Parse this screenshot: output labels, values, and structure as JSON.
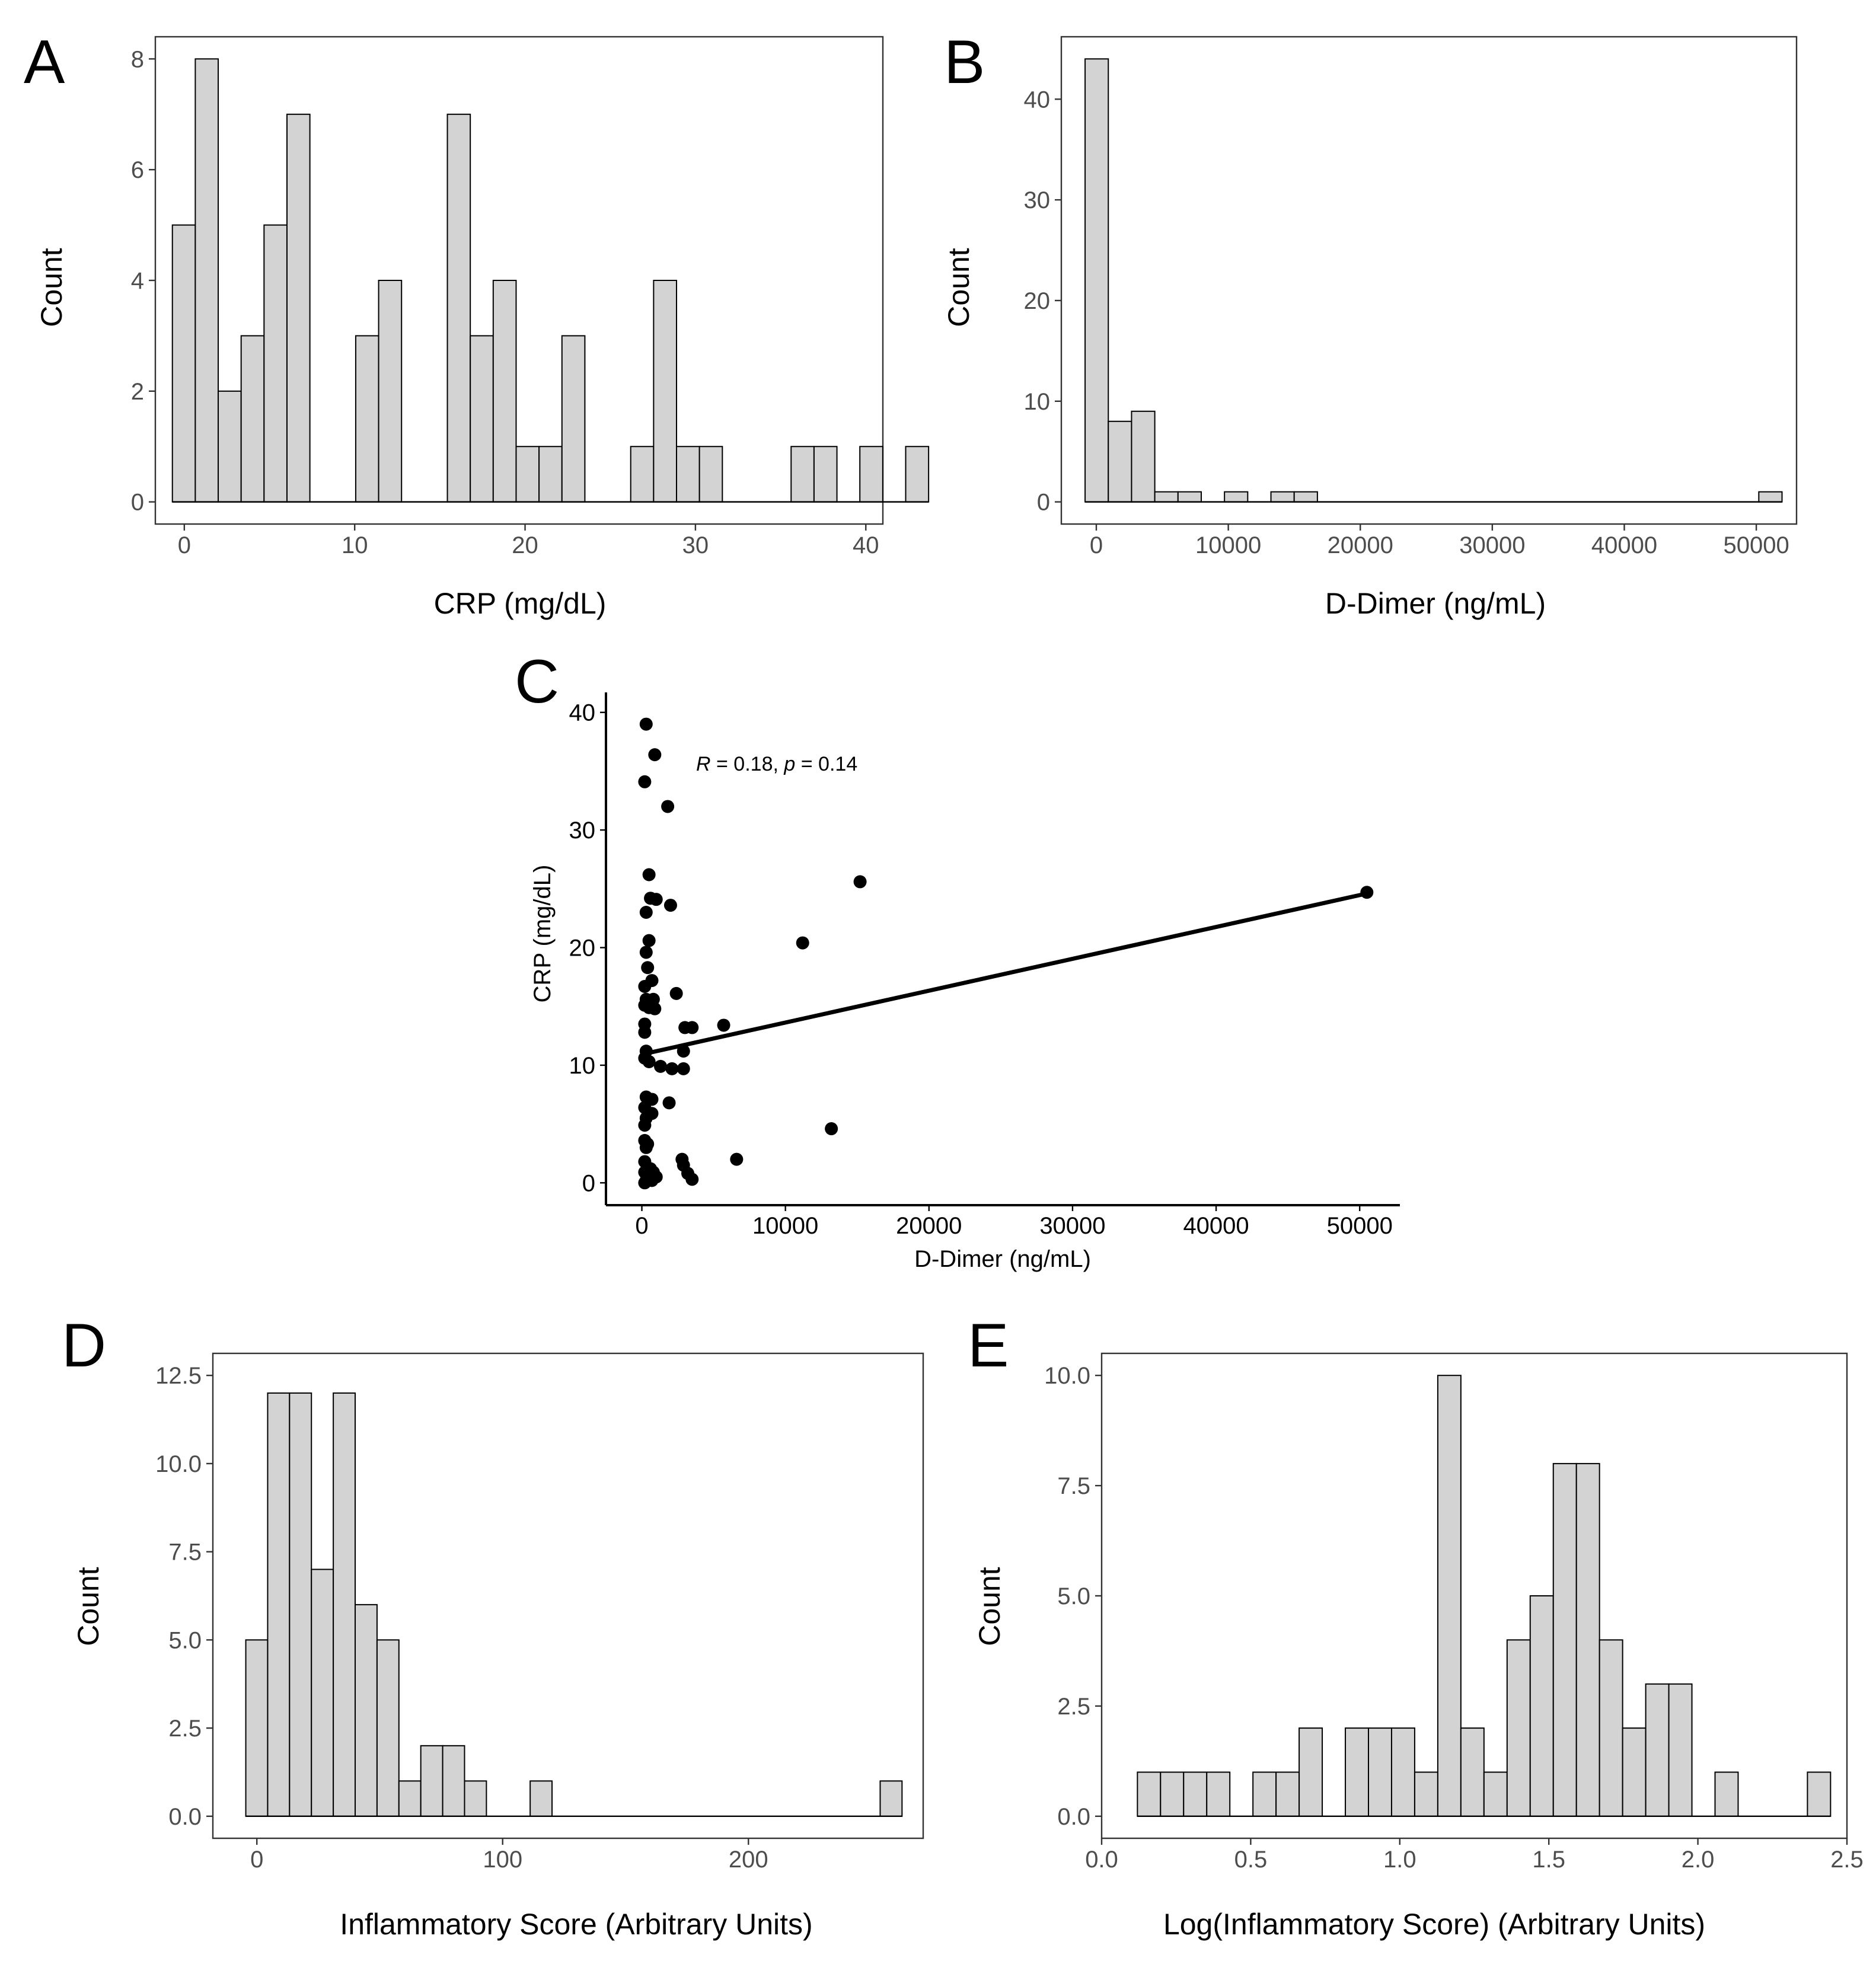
{
  "chart_data": [
    {
      "panel": "A",
      "type": "histogram",
      "xlabel": "CRP (mg/dL)",
      "ylabel": "Count",
      "xlim": [
        -1.7,
        41
      ],
      "ylim": [
        -0.4,
        8.4
      ],
      "xticks": [
        0,
        10,
        20,
        30,
        40
      ],
      "yticks": [
        0,
        2,
        4,
        6,
        8
      ],
      "bin_start": -0.7,
      "bin_width": 1.345,
      "counts": [
        5,
        8,
        2,
        3,
        5,
        7,
        0,
        0,
        3,
        4,
        0,
        0,
        7,
        3,
        4,
        1,
        1,
        3,
        0,
        0,
        1,
        4,
        1,
        1,
        0,
        0,
        0,
        1,
        1,
        0,
        1,
        0,
        1
      ]
    },
    {
      "panel": "B",
      "type": "histogram",
      "xlabel": "D-Dimer (ng/mL)",
      "ylabel": "Count",
      "xlim": [
        -2650,
        53050
      ],
      "ylim": [
        -2.2,
        46.2
      ],
      "xticks": [
        0,
        10000,
        20000,
        30000,
        40000,
        50000
      ],
      "yticks": [
        0,
        10,
        20,
        30,
        40
      ],
      "bin_start": -850,
      "bin_width": 1760,
      "counts": [
        44,
        8,
        9,
        1,
        1,
        0,
        1,
        0,
        1,
        1,
        0,
        0,
        0,
        0,
        0,
        0,
        0,
        0,
        0,
        0,
        0,
        0,
        0,
        0,
        0,
        0,
        0,
        0,
        0,
        1
      ]
    },
    {
      "panel": "C",
      "type": "scatter",
      "xlabel": "D-Dimer (ng/mL)",
      "ylabel": "CRP (mg/dL)",
      "xlim": [
        -2500,
        52800
      ],
      "ylim": [
        -1.9,
        41.7
      ],
      "xticks": [
        0,
        10000,
        20000,
        30000,
        40000,
        50000
      ],
      "yticks": [
        0,
        10,
        20,
        30,
        40
      ],
      "annotation": {
        "r_label": "R",
        "r_text": " = 0.18, ",
        "p_label": "p",
        "p_text": " = 0.14"
      },
      "regression": {
        "x": [
          300,
          50500
        ],
        "y": [
          11.0,
          24.6
        ]
      },
      "points": [
        [
          300,
          39.0
        ],
        [
          900,
          36.4
        ],
        [
          200,
          34.1
        ],
        [
          1800,
          32.0
        ],
        [
          15200,
          25.6
        ],
        [
          50500,
          24.7
        ],
        [
          500,
          26.2
        ],
        [
          600,
          24.2
        ],
        [
          1000,
          24.1
        ],
        [
          2000,
          23.6
        ],
        [
          300,
          23.0
        ],
        [
          11200,
          20.4
        ],
        [
          500,
          20.6
        ],
        [
          300,
          19.6
        ],
        [
          400,
          18.3
        ],
        [
          700,
          17.2
        ],
        [
          200,
          16.7
        ],
        [
          2400,
          16.1
        ],
        [
          300,
          15.6
        ],
        [
          800,
          15.6
        ],
        [
          200,
          15.1
        ],
        [
          500,
          14.9
        ],
        [
          900,
          14.8
        ],
        [
          5700,
          13.4
        ],
        [
          200,
          13.5
        ],
        [
          3000,
          13.2
        ],
        [
          3500,
          13.2
        ],
        [
          200,
          12.8
        ],
        [
          300,
          11.2
        ],
        [
          2900,
          11.2
        ],
        [
          200,
          10.6
        ],
        [
          500,
          10.3
        ],
        [
          1300,
          9.9
        ],
        [
          2100,
          9.7
        ],
        [
          2900,
          9.7
        ],
        [
          300,
          7.3
        ],
        [
          700,
          7.1
        ],
        [
          1900,
          6.8
        ],
        [
          200,
          6.4
        ],
        [
          700,
          5.9
        ],
        [
          300,
          5.5
        ],
        [
          200,
          4.9
        ],
        [
          13200,
          4.6
        ],
        [
          200,
          3.6
        ],
        [
          400,
          3.3
        ],
        [
          300,
          3.0
        ],
        [
          6600,
          2.0
        ],
        [
          2800,
          2.0
        ],
        [
          200,
          1.8
        ],
        [
          2900,
          1.5
        ],
        [
          3200,
          0.8
        ],
        [
          600,
          1.2
        ],
        [
          200,
          0.9
        ],
        [
          800,
          0.9
        ],
        [
          400,
          0.5
        ],
        [
          1000,
          0.5
        ],
        [
          3500,
          0.3
        ],
        [
          300,
          0.2
        ],
        [
          700,
          0.2
        ],
        [
          200,
          0.0
        ]
      ]
    },
    {
      "panel": "D",
      "type": "histogram",
      "xlabel": "Inflammatory Score (Arbitrary Units)",
      "ylabel": "Count",
      "xlim": [
        -17.9,
        271.1
      ],
      "ylim": [
        -0.625,
        13.125
      ],
      "xticks": [
        0,
        100,
        200
      ],
      "xtick_labels": [
        "0",
        "100",
        "200"
      ],
      "yticks": [
        0,
        2.5,
        5,
        7.5,
        10,
        12.5
      ],
      "ytick_labels": [
        "0.0",
        "2.5",
        "5.0",
        "7.5",
        "10.0",
        "12.5"
      ],
      "bin_start": -4.5,
      "bin_width": 8.9,
      "counts": [
        5,
        12,
        12,
        7,
        12,
        6,
        5,
        1,
        2,
        2,
        1,
        0,
        0,
        1,
        0,
        0,
        0,
        0,
        0,
        0,
        0,
        0,
        0,
        0,
        0,
        0,
        0,
        0,
        0,
        1
      ]
    },
    {
      "panel": "E",
      "type": "histogram",
      "xlabel": "Log(Inflammatory Score) (Arbitrary Units)",
      "ylabel": "Count",
      "xlim": [
        0.0,
        2.5
      ],
      "ylim": [
        -0.5,
        10.5
      ],
      "xticks": [
        0,
        0.5,
        1,
        1.5,
        2,
        2.5
      ],
      "xtick_labels": [
        "0.0",
        "0.5",
        "1.0",
        "1.5",
        "2.0",
        "2.5"
      ],
      "yticks": [
        0,
        2.5,
        5,
        7.5,
        10
      ],
      "ytick_labels": [
        "0.0",
        "2.5",
        "5.0",
        "7.5",
        "10.0"
      ],
      "bin_start": 0.12,
      "bin_width": 0.0775,
      "counts": [
        1,
        1,
        1,
        1,
        0,
        1,
        1,
        2,
        0,
        2,
        2,
        2,
        1,
        10,
        2,
        1,
        4,
        5,
        8,
        8,
        4,
        2,
        3,
        3,
        0,
        1,
        0,
        0,
        0,
        1
      ]
    }
  ]
}
